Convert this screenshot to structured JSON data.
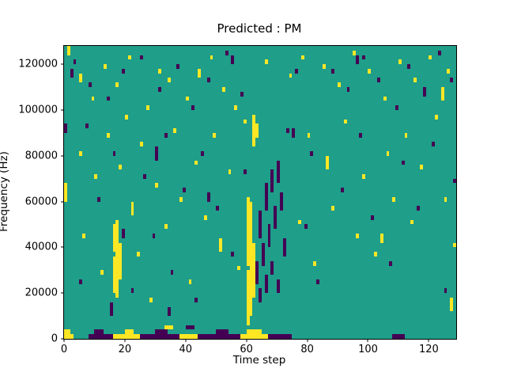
{
  "chart_data": {
    "type": "heatmap",
    "title": "Predicted : PM",
    "xlabel": "Time step",
    "ylabel": "Frequency (Hz)",
    "x_range": [
      0,
      129
    ],
    "y_range_hz": [
      0,
      128000
    ],
    "x_ticks": [
      0,
      20,
      40,
      60,
      80,
      100,
      120
    ],
    "y_ticks": [
      0,
      20000,
      40000,
      60000,
      80000,
      100000,
      120000
    ],
    "n_time": 129,
    "n_freq_bins": 64,
    "bin_hz": 2000,
    "grid": false,
    "legend": "none",
    "colors": {
      "background": "#1f9e89",
      "high": "#fde725",
      "low": "#440154",
      "axis": "#000000"
    },
    "cells": {
      "vruns": [
        [
          "y",
          0,
          30,
          33
        ],
        [
          "y",
          1,
          62,
          63
        ],
        [
          "p",
          0,
          45,
          46
        ],
        [
          "p",
          2,
          57,
          58
        ],
        [
          "y",
          16,
          10,
          17
        ],
        [
          "y",
          16,
          19,
          24
        ],
        [
          "y",
          17,
          9,
          25
        ],
        [
          "y",
          18,
          13,
          20
        ],
        [
          "p",
          15,
          5,
          7
        ],
        [
          "p",
          19,
          22,
          23
        ],
        [
          "y",
          60,
          3,
          14
        ],
        [
          "y",
          60,
          16,
          30
        ],
        [
          "y",
          61,
          5,
          29
        ],
        [
          "y",
          62,
          9,
          20
        ],
        [
          "y",
          62,
          42,
          48
        ],
        [
          "y",
          63,
          44,
          46
        ],
        [
          "p",
          63,
          12,
          16
        ],
        [
          "p",
          64,
          8,
          10
        ],
        [
          "p",
          64,
          22,
          27
        ],
        [
          "p",
          65,
          16,
          20
        ],
        [
          "p",
          66,
          10,
          13
        ],
        [
          "p",
          66,
          28,
          33
        ],
        [
          "p",
          67,
          20,
          24
        ],
        [
          "p",
          68,
          14,
          16
        ],
        [
          "p",
          68,
          32,
          36
        ],
        [
          "p",
          69,
          24,
          28
        ],
        [
          "p",
          70,
          10,
          12
        ],
        [
          "p",
          70,
          34,
          38
        ],
        [
          "p",
          71,
          28,
          31
        ],
        [
          "p",
          72,
          18,
          21
        ],
        [
          "y",
          5,
          56,
          57
        ],
        [
          "p",
          30,
          39,
          41
        ],
        [
          "y",
          44,
          57,
          58
        ],
        [
          "p",
          55,
          60,
          61
        ],
        [
          "y",
          86,
          37,
          39
        ],
        [
          "p",
          75,
          44,
          45
        ],
        [
          "y",
          104,
          21,
          22
        ],
        [
          "p",
          96,
          60,
          61
        ],
        [
          "y",
          124,
          52,
          54
        ],
        [
          "p",
          118,
          53,
          54
        ],
        [
          "y",
          127,
          6,
          8
        ],
        [
          "p",
          34,
          5,
          6
        ],
        [
          "y",
          22,
          27,
          29
        ],
        [
          "p",
          47,
          30,
          31
        ],
        [
          "y",
          51,
          19,
          21
        ]
      ],
      "hruns": [
        [
          "y",
          0,
          2,
          0
        ],
        [
          "y",
          0,
          1,
          1
        ],
        [
          "p",
          8,
          15,
          0
        ],
        [
          "y",
          16,
          24,
          0
        ],
        [
          "p",
          25,
          37,
          0
        ],
        [
          "y",
          38,
          43,
          0
        ],
        [
          "p",
          44,
          57,
          0
        ],
        [
          "y",
          58,
          66,
          0
        ],
        [
          "p",
          67,
          74,
          0
        ],
        [
          "p",
          108,
          111,
          0
        ],
        [
          "p",
          10,
          12,
          1
        ],
        [
          "y",
          20,
          22,
          1
        ],
        [
          "p",
          30,
          33,
          1
        ],
        [
          "p",
          50,
          53,
          1
        ],
        [
          "y",
          60,
          64,
          1
        ],
        [
          "p",
          40,
          42,
          2
        ],
        [
          "y",
          33,
          35,
          2
        ]
      ],
      "points": [
        [
          "y",
          5,
          40
        ],
        [
          "y",
          6,
          22
        ],
        [
          "y",
          9,
          52
        ],
        [
          "y",
          10,
          35
        ],
        [
          "y",
          12,
          14
        ],
        [
          "y",
          13,
          59
        ],
        [
          "y",
          14,
          44
        ],
        [
          "y",
          17,
          55
        ],
        [
          "y",
          18,
          37
        ],
        [
          "y",
          20,
          48
        ],
        [
          "y",
          21,
          61
        ],
        [
          "y",
          24,
          18
        ],
        [
          "y",
          25,
          42
        ],
        [
          "y",
          27,
          50
        ],
        [
          "y",
          28,
          8
        ],
        [
          "y",
          30,
          33
        ],
        [
          "y",
          31,
          58
        ],
        [
          "y",
          33,
          24
        ],
        [
          "y",
          34,
          56
        ],
        [
          "y",
          36,
          45
        ],
        [
          "y",
          38,
          30
        ],
        [
          "y",
          40,
          52
        ],
        [
          "y",
          41,
          12
        ],
        [
          "y",
          43,
          38
        ],
        [
          "y",
          46,
          26
        ],
        [
          "y",
          48,
          61
        ],
        [
          "y",
          49,
          44
        ],
        [
          "y",
          52,
          54
        ],
        [
          "y",
          54,
          36
        ],
        [
          "y",
          56,
          50
        ],
        [
          "y",
          57,
          15
        ],
        [
          "y",
          59,
          47
        ],
        [
          "y",
          66,
          60
        ],
        [
          "y",
          74,
          57
        ],
        [
          "y",
          77,
          25
        ],
        [
          "y",
          78,
          61
        ],
        [
          "y",
          80,
          44
        ],
        [
          "y",
          82,
          16
        ],
        [
          "y",
          85,
          59
        ],
        [
          "y",
          88,
          28
        ],
        [
          "y",
          90,
          55
        ],
        [
          "y",
          92,
          47
        ],
        [
          "y",
          95,
          62
        ],
        [
          "y",
          96,
          22
        ],
        [
          "y",
          98,
          35
        ],
        [
          "y",
          100,
          58
        ],
        [
          "y",
          102,
          18
        ],
        [
          "y",
          105,
          52
        ],
        [
          "y",
          106,
          40
        ],
        [
          "y",
          108,
          30
        ],
        [
          "y",
          110,
          60
        ],
        [
          "y",
          112,
          44
        ],
        [
          "y",
          114,
          25
        ],
        [
          "y",
          115,
          56
        ],
        [
          "y",
          117,
          37
        ],
        [
          "y",
          120,
          61
        ],
        [
          "y",
          122,
          48
        ],
        [
          "y",
          125,
          30
        ],
        [
          "y",
          126,
          58
        ],
        [
          "y",
          128,
          20
        ],
        [
          "p",
          3,
          60
        ],
        [
          "p",
          5,
          12
        ],
        [
          "p",
          7,
          46
        ],
        [
          "p",
          8,
          55
        ],
        [
          "p",
          11,
          30
        ],
        [
          "p",
          14,
          52
        ],
        [
          "p",
          16,
          40
        ],
        [
          "p",
          19,
          58
        ],
        [
          "p",
          22,
          10
        ],
        [
          "p",
          25,
          61
        ],
        [
          "p",
          26,
          35
        ],
        [
          "p",
          29,
          22
        ],
        [
          "p",
          31,
          54
        ],
        [
          "p",
          33,
          44
        ],
        [
          "p",
          35,
          14
        ],
        [
          "p",
          37,
          59
        ],
        [
          "p",
          39,
          32
        ],
        [
          "p",
          42,
          50
        ],
        [
          "p",
          43,
          8
        ],
        [
          "p",
          45,
          40
        ],
        [
          "p",
          47,
          56
        ],
        [
          "p",
          50,
          28
        ],
        [
          "p",
          53,
          62
        ],
        [
          "p",
          55,
          18
        ],
        [
          "p",
          58,
          53
        ],
        [
          "p",
          59,
          36
        ],
        [
          "p",
          73,
          45
        ],
        [
          "p",
          76,
          58
        ],
        [
          "p",
          79,
          24
        ],
        [
          "p",
          81,
          40
        ],
        [
          "p",
          83,
          12
        ],
        [
          "p",
          88,
          58
        ],
        [
          "p",
          91,
          32
        ],
        [
          "p",
          93,
          54
        ],
        [
          "p",
          97,
          44
        ],
        [
          "p",
          98,
          61
        ],
        [
          "p",
          101,
          26
        ],
        [
          "p",
          103,
          56
        ],
        [
          "p",
          107,
          16
        ],
        [
          "p",
          109,
          50
        ],
        [
          "p",
          111,
          38
        ],
        [
          "p",
          113,
          59
        ],
        [
          "p",
          116,
          28
        ],
        [
          "p",
          118,
          54
        ],
        [
          "p",
          121,
          42
        ],
        [
          "p",
          123,
          62
        ],
        [
          "p",
          125,
          10
        ],
        [
          "p",
          127,
          56
        ],
        [
          "p",
          128,
          34
        ]
      ]
    }
  }
}
